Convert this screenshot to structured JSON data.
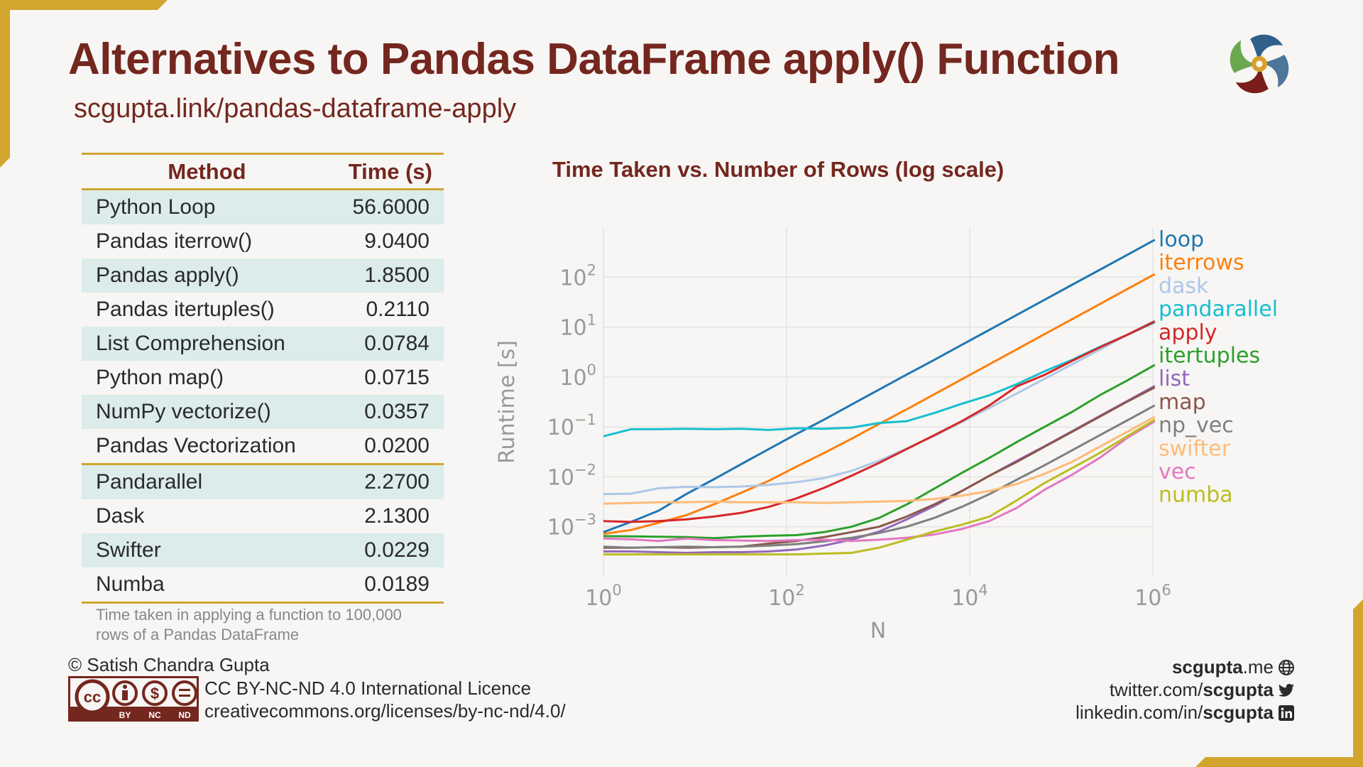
{
  "title": "Alternatives to Pandas DataFrame apply() Function",
  "subtitle": "scgupta.link/pandas-dataframe-apply",
  "table": {
    "headers": {
      "method": "Method",
      "time": "Time (s)"
    },
    "rows": [
      {
        "method": "Python Loop",
        "time": "56.6000"
      },
      {
        "method": "Pandas iterrow()",
        "time": "9.0400"
      },
      {
        "method": "Pandas apply()",
        "time": "1.8500"
      },
      {
        "method": "Pandas itertuples()",
        "time": "0.2110"
      },
      {
        "method": "List Comprehension",
        "time": "0.0784"
      },
      {
        "method": "Python map()",
        "time": "0.0715"
      },
      {
        "method": "NumPy vectorize()",
        "time": "0.0357"
      },
      {
        "method": "Pandas Vectorization",
        "time": "0.0200"
      },
      {
        "method": "Pandarallel",
        "time": "2.2700"
      },
      {
        "method": "Dask",
        "time": "2.1300"
      },
      {
        "method": "Swifter",
        "time": "0.0229"
      },
      {
        "method": "Numba",
        "time": "0.0189"
      }
    ],
    "note": "Time taken in applying a function to 100,000 rows of a Pandas DataFrame"
  },
  "chart_data": {
    "type": "line",
    "title": "Time Taken vs. Number of Rows (log scale)",
    "xlabel": "N",
    "ylabel": "Runtime [s]",
    "x_scale": "log",
    "y_scale": "log",
    "xlim": [
      1,
      1000000
    ],
    "ylim": [
      0.0001,
      1000
    ],
    "x_ticks": [
      {
        "value": 1,
        "base": "10",
        "exp": "0"
      },
      {
        "value": 100,
        "base": "10",
        "exp": "2"
      },
      {
        "value": 10000,
        "base": "10",
        "exp": "4"
      },
      {
        "value": 1000000,
        "base": "10",
        "exp": "6"
      }
    ],
    "y_ticks": [
      {
        "value": 0.001,
        "base": "10",
        "exp": "−3"
      },
      {
        "value": 0.01,
        "base": "10",
        "exp": "−2"
      },
      {
        "value": 0.1,
        "base": "10",
        "exp": "−1"
      },
      {
        "value": 1,
        "base": "10",
        "exp": "0"
      },
      {
        "value": 10,
        "base": "10",
        "exp": "1"
      },
      {
        "value": 100,
        "base": "10",
        "exp": "2"
      }
    ],
    "grid": true,
    "legend_position": "right",
    "x": [
      1,
      2,
      4,
      8,
      16,
      32,
      64,
      128,
      256,
      512,
      1024,
      2048,
      4096,
      8192,
      16384,
      32768,
      65536,
      131072,
      262144,
      524288,
      1048576
    ],
    "series": [
      {
        "name": "loop",
        "color": "#1f77b4",
        "values": [
          0.00078,
          0.00125,
          0.0021,
          0.0045,
          0.0089,
          0.018,
          0.036,
          0.072,
          0.14,
          0.28,
          0.56,
          1.12,
          2.2,
          4.4,
          8.8,
          17.6,
          35.2,
          70.4,
          140,
          280,
          560
        ]
      },
      {
        "name": "iterrows",
        "color": "#ff7f0e",
        "values": [
          0.00072,
          0.00086,
          0.0012,
          0.0017,
          0.0028,
          0.0048,
          0.0083,
          0.016,
          0.03,
          0.058,
          0.115,
          0.225,
          0.45,
          0.9,
          1.8,
          3.6,
          7.2,
          14.4,
          28.8,
          57.6,
          115
        ]
      },
      {
        "name": "dask",
        "color": "#aec7e8",
        "values": [
          0.0045,
          0.0046,
          0.0059,
          0.0063,
          0.0062,
          0.0064,
          0.0069,
          0.0078,
          0.0094,
          0.0132,
          0.021,
          0.037,
          0.066,
          0.125,
          0.24,
          0.47,
          0.92,
          1.8,
          3.5,
          7,
          13.5
        ]
      },
      {
        "name": "pandarallel",
        "color": "#17becf",
        "values": [
          0.065,
          0.09,
          0.09,
          0.092,
          0.09,
          0.092,
          0.087,
          0.094,
          0.092,
          0.097,
          0.12,
          0.13,
          0.19,
          0.29,
          0.43,
          0.72,
          1.3,
          2.2,
          4,
          7,
          12.5
        ]
      },
      {
        "name": "apply",
        "color": "#d62728",
        "values": [
          0.0013,
          0.00125,
          0.0013,
          0.0014,
          0.0016,
          0.0019,
          0.0025,
          0.0037,
          0.006,
          0.0105,
          0.019,
          0.036,
          0.068,
          0.13,
          0.27,
          0.65,
          1.1,
          2.1,
          3.9,
          7,
          13
        ]
      },
      {
        "name": "itertuples",
        "color": "#2ca02c",
        "values": [
          0.00065,
          0.00064,
          0.00063,
          0.00062,
          0.00059,
          0.00063,
          0.00066,
          0.00068,
          0.00078,
          0.001,
          0.0015,
          0.0028,
          0.0058,
          0.012,
          0.024,
          0.05,
          0.1,
          0.2,
          0.43,
          0.85,
          1.75
        ]
      },
      {
        "name": "list",
        "color": "#9467bd",
        "values": [
          0.00032,
          0.00032,
          0.00031,
          0.0003,
          0.00031,
          0.00031,
          0.00032,
          0.00035,
          0.00042,
          0.00055,
          0.0008,
          0.0014,
          0.0026,
          0.0052,
          0.0105,
          0.021,
          0.041,
          0.082,
          0.165,
          0.33,
          0.66
        ]
      },
      {
        "name": "map",
        "color": "#8c564b",
        "values": [
          0.00038,
          0.00038,
          0.00039,
          0.00038,
          0.00039,
          0.0004,
          0.00046,
          0.00052,
          0.00062,
          0.00078,
          0.001,
          0.0016,
          0.0028,
          0.0052,
          0.0105,
          0.02,
          0.04,
          0.08,
          0.16,
          0.32,
          0.62
        ]
      },
      {
        "name": "np_vec",
        "color": "#7f7f7f",
        "values": [
          0.0004,
          0.00038,
          0.00039,
          0.0004,
          0.00039,
          0.0004,
          0.00042,
          0.00045,
          0.00051,
          0.0006,
          0.00075,
          0.001,
          0.0015,
          0.0025,
          0.0045,
          0.0088,
          0.017,
          0.034,
          0.068,
          0.135,
          0.27
        ]
      },
      {
        "name": "swifter",
        "color": "#ffbb78",
        "values": [
          0.0029,
          0.003,
          0.0031,
          0.0031,
          0.0032,
          0.0031,
          0.0031,
          0.0031,
          0.003,
          0.0031,
          0.0032,
          0.0033,
          0.0036,
          0.0042,
          0.0052,
          0.0072,
          0.0115,
          0.02,
          0.04,
          0.08,
          0.16
        ]
      },
      {
        "name": "vec",
        "color": "#e377c2",
        "values": [
          0.00058,
          0.00056,
          0.00052,
          0.00058,
          0.00054,
          0.00053,
          0.00052,
          0.00054,
          0.00055,
          0.00052,
          0.00055,
          0.0006,
          0.0007,
          0.0009,
          0.0013,
          0.0024,
          0.0055,
          0.011,
          0.024,
          0.06,
          0.13
        ]
      },
      {
        "name": "numba",
        "color": "#bcbd22",
        "values": [
          0.00028,
          0.00028,
          0.00028,
          0.00028,
          0.00028,
          0.00028,
          0.00028,
          0.00028,
          0.00029,
          0.0003,
          0.00038,
          0.00055,
          0.0008,
          0.0011,
          0.0016,
          0.0034,
          0.0075,
          0.015,
          0.03,
          0.065,
          0.14
        ]
      }
    ]
  },
  "footer": {
    "author": "© Satish Chandra Gupta",
    "license_name": "CC BY-NC-ND 4.0 International Licence",
    "license_url": "creativecommons.org/licenses/by-nc-nd/4.0/",
    "cc_badge": {
      "by": "BY",
      "nc": "NC",
      "nd": "ND",
      "cc": "cc"
    },
    "website": {
      "bold": "scgupta",
      "rest": ".me",
      "icon": "globe-icon"
    },
    "twitter": {
      "prefix": "twitter.com/",
      "bold": "scgupta",
      "icon": "twitter-icon"
    },
    "linkedin": {
      "prefix": "linkedin.com/in/",
      "bold": "scgupta",
      "icon": "linkedin-icon"
    }
  },
  "colors": {
    "title": "#74271f",
    "accent": "#d1a52e",
    "row_shade": "#dbecea",
    "logo_green": "#6aa84f",
    "logo_blue": "#2f5f8a",
    "logo_red": "#7a1e1a",
    "logo_gold": "#d8a02a"
  }
}
